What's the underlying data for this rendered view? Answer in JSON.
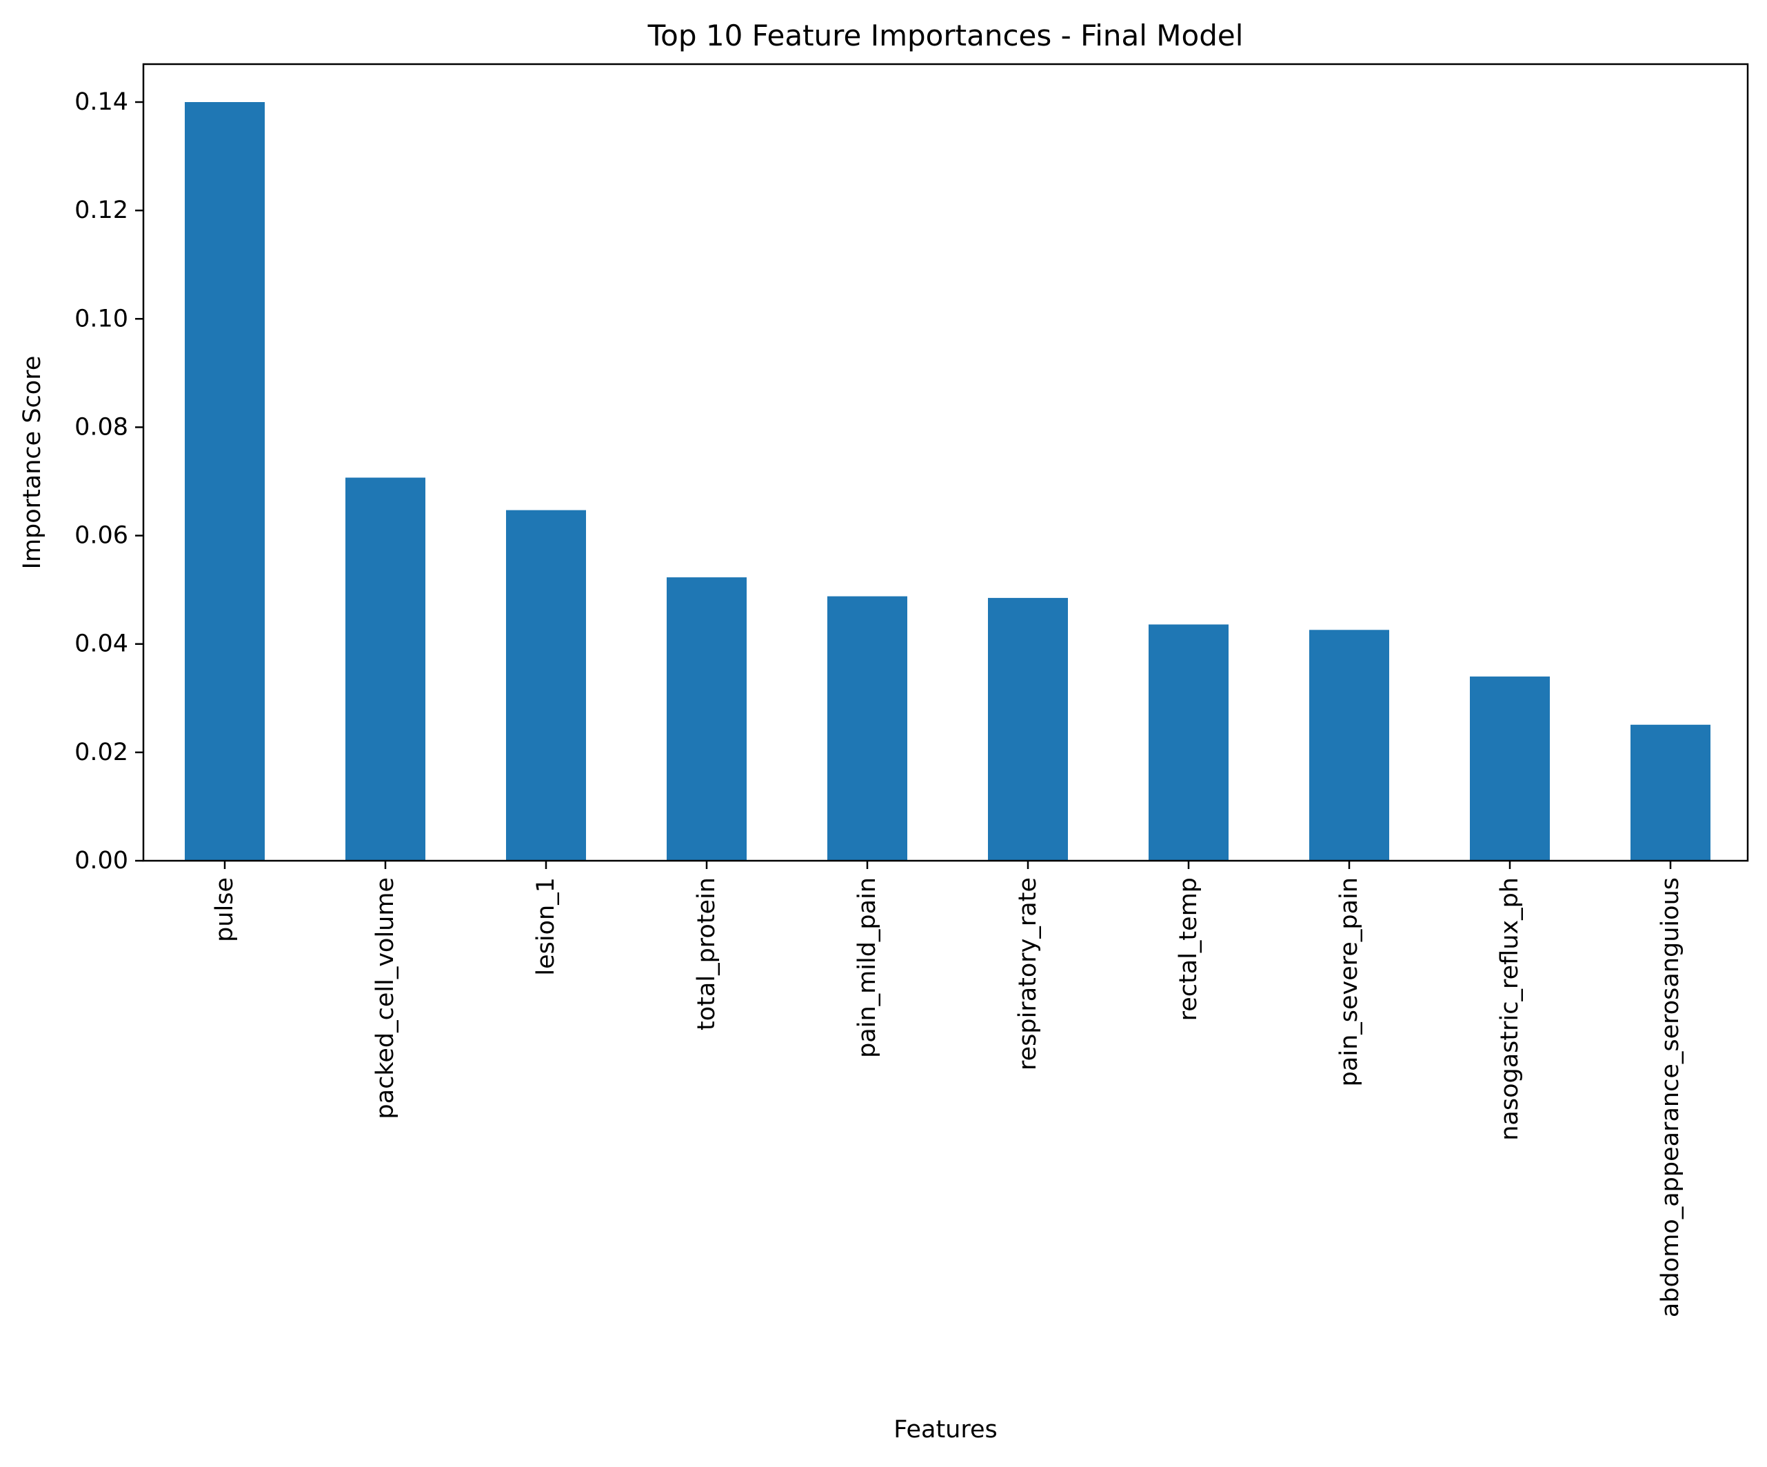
{
  "chart_data": {
    "type": "bar",
    "title": "Top 10 Feature Importances - Final Model",
    "xlabel": "Features",
    "ylabel": "Importance Score",
    "categories": [
      "pulse",
      "packed_cell_volume",
      "lesion_1",
      "total_protein",
      "pain_mild_pain",
      "respiratory_rate",
      "rectal_temp",
      "pain_severe_pain",
      "nasogastric_reflux_ph",
      "abdomo_appearance_serosanguious"
    ],
    "values": [
      0.14,
      0.0707,
      0.0647,
      0.0523,
      0.0488,
      0.0485,
      0.0436,
      0.0426,
      0.034,
      0.0251
    ],
    "ylim": [
      0,
      0.147
    ],
    "yticks": [
      "0.00",
      "0.02",
      "0.04",
      "0.06",
      "0.08",
      "0.10",
      "0.12",
      "0.14"
    ],
    "grid": false,
    "legend": "none",
    "colors": {
      "bar": "#1f77b4",
      "axis": "#000000",
      "background": "#ffffff"
    }
  }
}
